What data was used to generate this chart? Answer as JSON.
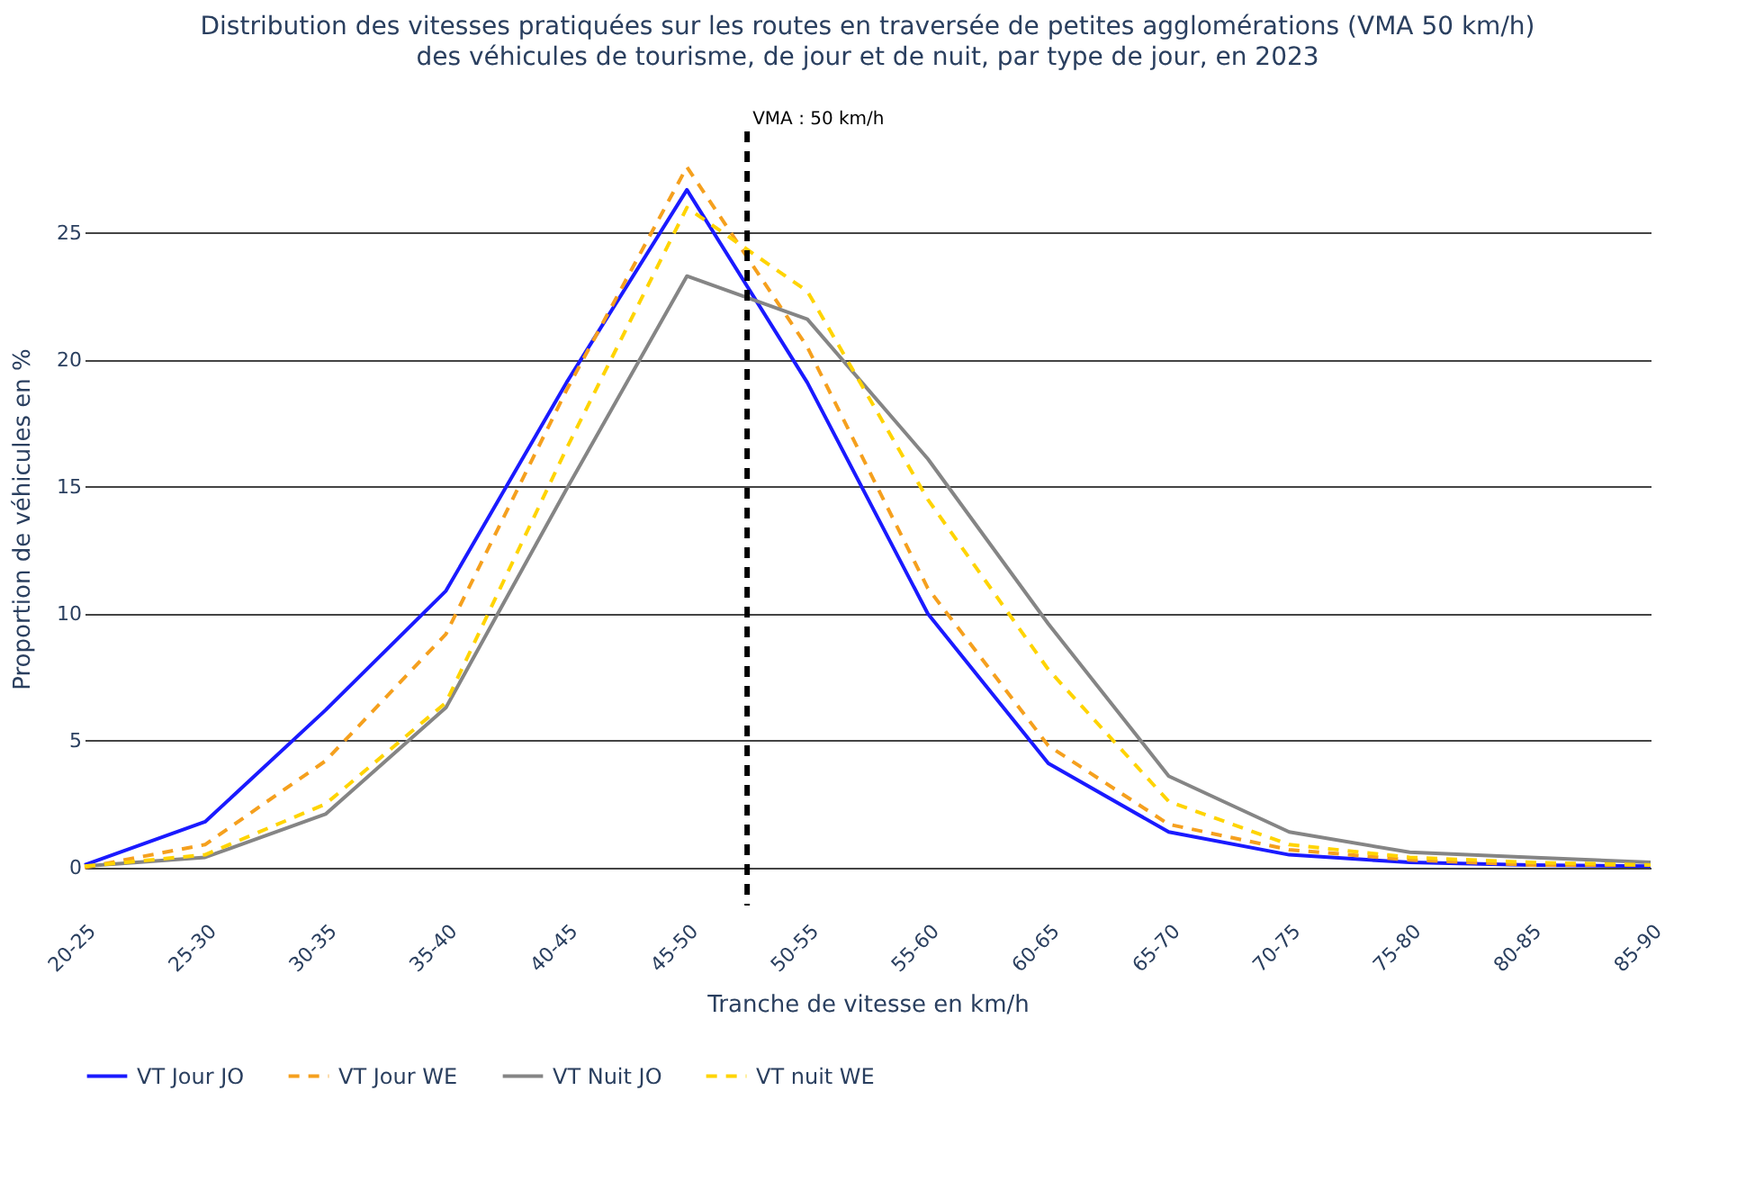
{
  "chart_data": {
    "type": "line",
    "title": "Distribution des vitesses pratiquées sur les routes en traversée de petites agglomérations (VMA 50 km/h)",
    "subtitle": "des véhicules de tourisme, de jour et de nuit, par type de jour, en 2023",
    "xlabel": "Tranche de vitesse en km/h",
    "ylabel": "Proportion de véhicules en %",
    "categories": [
      "20-25",
      "25-30",
      "30-35",
      "35-40",
      "40-45",
      "45-50",
      "50-55",
      "55-60",
      "60-65",
      "65-70",
      "70-75",
      "75-80",
      "80-85",
      "85-90"
    ],
    "ylim": [
      -1.5,
      29
    ],
    "yticks": [
      0,
      5,
      10,
      15,
      20,
      25
    ],
    "grid": "y",
    "legend": "bottom",
    "series": [
      {
        "name": "VT Jour JO",
        "color": "#1a1aff",
        "line_style": "solid",
        "values": [
          0.1,
          1.8,
          6.2,
          10.9,
          19.1,
          26.7,
          19.1,
          10.0,
          4.1,
          1.4,
          0.5,
          0.2,
          0.1,
          0.05
        ]
      },
      {
        "name": "VT Jour WE",
        "color": "#f5a01e",
        "line_style": "dashed",
        "values": [
          0.0,
          0.9,
          4.2,
          9.2,
          18.8,
          27.6,
          20.5,
          11.0,
          4.8,
          1.7,
          0.7,
          0.3,
          0.1,
          0.1
        ]
      },
      {
        "name": "VT Nuit JO",
        "color": "#858585",
        "line_style": "solid",
        "values": [
          0.05,
          0.4,
          2.1,
          6.3,
          14.9,
          23.3,
          21.6,
          16.1,
          9.6,
          3.6,
          1.4,
          0.6,
          0.4,
          0.2
        ]
      },
      {
        "name": "VT nuit WE",
        "color": "#ffd400",
        "line_style": "dashed",
        "values": [
          0.05,
          0.5,
          2.5,
          6.5,
          16.5,
          26.0,
          22.7,
          14.5,
          7.8,
          2.6,
          0.9,
          0.4,
          0.2,
          0.1
        ]
      }
    ],
    "ref_lines": [
      {
        "axis": "x",
        "value": "50-55",
        "label": "VMA : 50 km/h",
        "color": "#000000",
        "line_style": "dashed"
      }
    ]
  }
}
